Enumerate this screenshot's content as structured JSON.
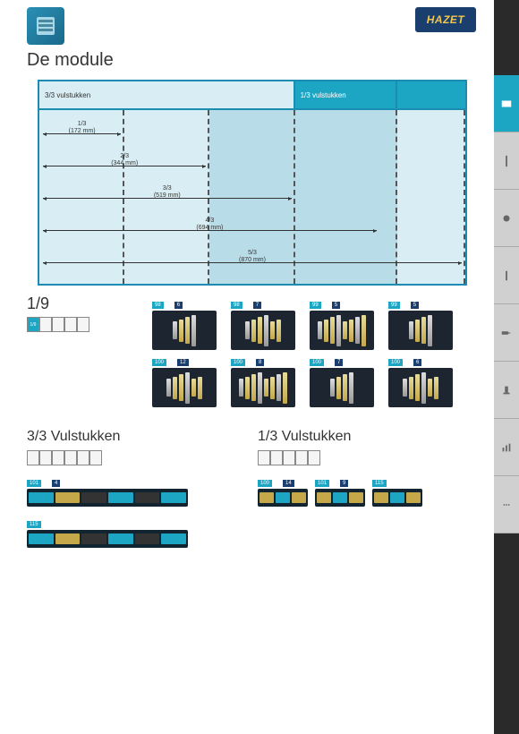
{
  "brand": "HAZET",
  "title": "De module",
  "diagram": {
    "header_left": "3/3 vulstukken",
    "header_right": "1/3 vulstukken",
    "dims": [
      {
        "frac": "1/3",
        "mm": "(172 mm)",
        "w": 20
      },
      {
        "frac": "2/3",
        "mm": "(344 mm)",
        "w": 40
      },
      {
        "frac": "3/3",
        "mm": "(519 mm)",
        "w": 60
      },
      {
        "frac": "4/3",
        "mm": "(694 mm)",
        "w": 80
      },
      {
        "frac": "5/3",
        "mm": "(870 mm)",
        "w": 100
      }
    ]
  },
  "section19": {
    "label": "1/9",
    "cell_label": "1/9",
    "products": [
      {
        "ref": "98",
        "count": "6"
      },
      {
        "ref": "98",
        "count": "7"
      },
      {
        "ref": "99",
        "count": "5"
      },
      {
        "ref": "99",
        "count": "5"
      },
      {
        "ref": "100",
        "count": "12"
      },
      {
        "ref": "100",
        "count": "8"
      },
      {
        "ref": "100",
        "count": "7"
      },
      {
        "ref": "100",
        "count": "6"
      }
    ]
  },
  "bottom": {
    "left_title": "3/3 Vulstukken",
    "right_title": "1/3 Vulstukken",
    "left_items": [
      {
        "ref": "101",
        "count": "4",
        "w": 180
      },
      {
        "ref": "115",
        "count": "",
        "w": 180
      }
    ],
    "right_items": [
      {
        "ref": "100",
        "count": "14",
        "w": 56
      },
      {
        "ref": "101",
        "count": "9",
        "w": 56
      },
      {
        "ref": "115",
        "count": "",
        "w": 56
      }
    ]
  },
  "colors": {
    "cyan": "#1da5c4",
    "navy": "#1a3e6e",
    "dark": "#1c2530"
  }
}
